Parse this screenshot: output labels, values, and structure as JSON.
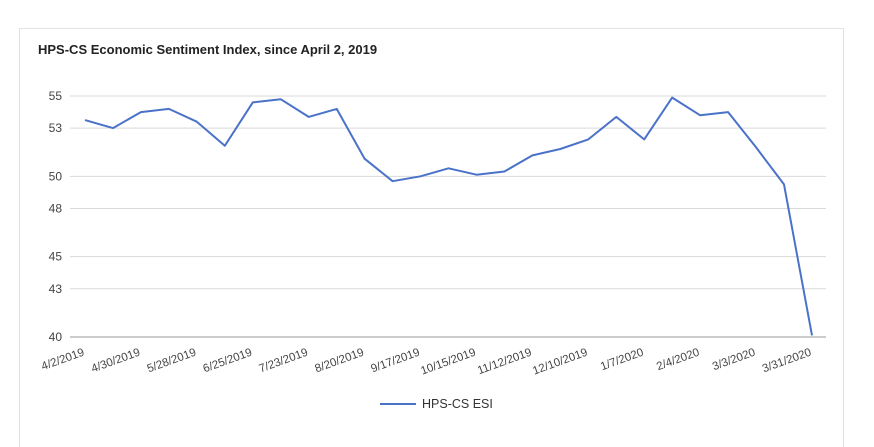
{
  "chart_data": {
    "type": "line",
    "title": "HPS-CS Economic Sentiment Index, since April 2, 2019",
    "xlabel": "",
    "ylabel": "",
    "ylim": [
      40,
      55
    ],
    "yticks": [
      55,
      53,
      50,
      48,
      45,
      43,
      40
    ],
    "grid": true,
    "legend": "bottom",
    "line_color": "#4a72c9",
    "categories": [
      "4/2/2019",
      "4/16/2019",
      "4/30/2019",
      "5/14/2019",
      "5/28/2019",
      "6/11/2019",
      "6/25/2019",
      "7/9/2019",
      "7/23/2019",
      "8/6/2019",
      "8/20/2019",
      "9/3/2019",
      "9/17/2019",
      "10/1/2019",
      "10/15/2019",
      "10/29/2019",
      "11/12/2019",
      "11/26/2019",
      "12/10/2019",
      "12/24/2019",
      "1/7/2020",
      "1/21/2020",
      "2/4/2020",
      "2/18/2020",
      "3/3/2020",
      "3/17/2020",
      "3/31/2020"
    ],
    "x_tick_labels": [
      "4/2/2019",
      "4/30/2019",
      "5/28/2019",
      "6/25/2019",
      "7/23/2019",
      "8/20/2019",
      "9/17/2019",
      "10/15/2019",
      "11/12/2019",
      "12/10/2019",
      "1/7/2020",
      "2/4/2020",
      "3/3/2020",
      "3/31/2020"
    ],
    "series": [
      {
        "name": "HPS-CS ESI",
        "values": [
          53.5,
          53.0,
          54.0,
          54.2,
          53.4,
          51.9,
          54.6,
          54.8,
          53.7,
          54.2,
          51.1,
          49.7,
          50.0,
          50.5,
          50.1,
          50.3,
          51.3,
          51.7,
          52.3,
          53.7,
          52.3,
          54.9,
          53.8,
          54.0,
          51.8,
          49.5,
          40.1
        ]
      }
    ]
  }
}
